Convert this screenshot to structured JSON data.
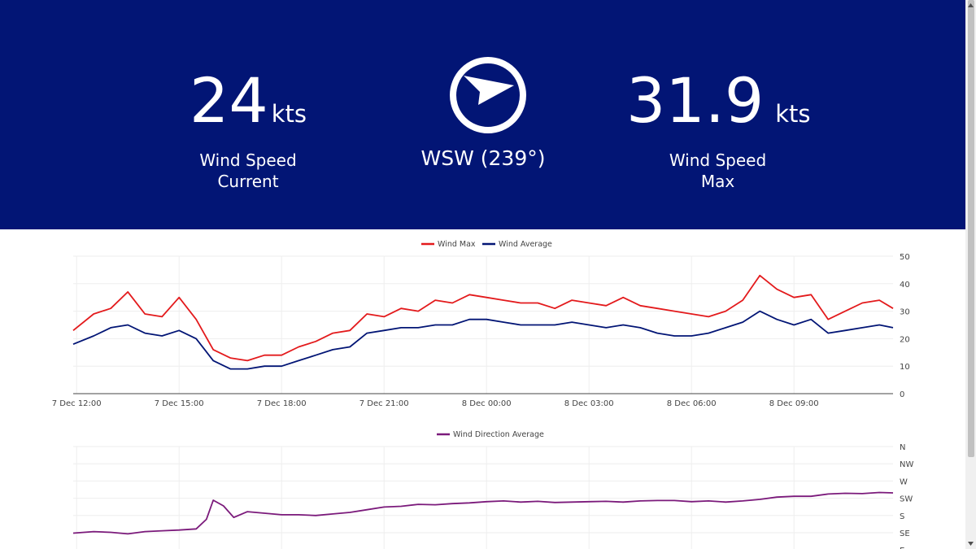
{
  "header": {
    "current": {
      "value": "24",
      "unit": "kts",
      "label_line1": "Wind Speed",
      "label_line2": "Current"
    },
    "direction": {
      "text": "WSW (239°)",
      "icon": "wind-direction-compass-icon",
      "bearing": 239
    },
    "max": {
      "value": "31.9",
      "unit": "kts",
      "label_line1": "Wind Speed",
      "label_line2": "Max"
    },
    "background": "#021575"
  },
  "chart_data": [
    {
      "type": "line",
      "legend_position": "top-center",
      "grid": true,
      "x_ticks": [
        "7 Dec 12:00",
        "7 Dec 15:00",
        "7 Dec 18:00",
        "7 Dec 21:00",
        "8 Dec 00:00",
        "8 Dec 03:00",
        "8 Dec 06:00",
        "8 Dec 09:00"
      ],
      "x_range_hours": [
        11.9,
        35.9
      ],
      "ylim": [
        0,
        50
      ],
      "y_ticks": [
        "0",
        "10",
        "20",
        "30",
        "40",
        "50"
      ],
      "x_hours": [
        11.9,
        12.5,
        13.0,
        13.5,
        14.0,
        14.5,
        15.0,
        15.5,
        16.0,
        16.5,
        17.0,
        17.5,
        18.0,
        18.5,
        19.0,
        19.5,
        20.0,
        20.5,
        21.0,
        21.5,
        22.0,
        22.5,
        23.0,
        23.5,
        24.0,
        24.5,
        25.0,
        25.5,
        26.0,
        26.5,
        27.0,
        27.5,
        28.0,
        28.5,
        29.0,
        29.5,
        30.0,
        30.5,
        31.0,
        31.5,
        32.0,
        32.5,
        33.0,
        33.5,
        34.0,
        34.5,
        35.0,
        35.5,
        35.9
      ],
      "series": [
        {
          "name": "Wind Max",
          "color": "#e31a1c",
          "values": [
            23,
            29,
            31,
            37,
            29,
            28,
            35,
            27,
            16,
            13,
            12,
            14,
            14,
            17,
            19,
            22,
            23,
            29,
            28,
            31,
            30,
            34,
            33,
            36,
            35,
            34,
            33,
            33,
            31,
            34,
            33,
            32,
            35,
            32,
            31,
            30,
            29,
            28,
            30,
            34,
            43,
            38,
            35,
            36,
            27,
            30,
            33,
            34,
            31
          ]
        },
        {
          "name": "Wind Average",
          "color": "#021575",
          "values": [
            18,
            21,
            24,
            25,
            22,
            21,
            23,
            20,
            12,
            9,
            9,
            10,
            10,
            12,
            14,
            16,
            17,
            22,
            23,
            24,
            24,
            25,
            25,
            27,
            27,
            26,
            25,
            25,
            25,
            26,
            25,
            24,
            25,
            24,
            22,
            21,
            21,
            22,
            24,
            26,
            30,
            27,
            25,
            27,
            22,
            23,
            24,
            25,
            24
          ]
        }
      ]
    },
    {
      "type": "line",
      "legend_position": "top-center",
      "grid": true,
      "y_ticks": [
        "N",
        "NW",
        "W",
        "SW",
        "S",
        "SE",
        "E"
      ],
      "y_ticks_degrees": [
        360,
        315,
        270,
        225,
        180,
        135,
        90
      ],
      "x_range_hours": [
        11.9,
        35.9
      ],
      "x_hours": [
        11.9,
        12.5,
        13.0,
        13.5,
        14.0,
        14.5,
        15.0,
        15.5,
        15.8,
        16.0,
        16.3,
        16.6,
        17.0,
        17.5,
        18.0,
        18.5,
        19.0,
        19.5,
        20.0,
        20.5,
        21.0,
        21.5,
        22.0,
        22.5,
        23.0,
        23.5,
        24.0,
        24.5,
        25.0,
        25.5,
        26.0,
        26.5,
        27.0,
        27.5,
        28.0,
        28.5,
        29.0,
        29.5,
        30.0,
        30.5,
        31.0,
        31.5,
        32.0,
        32.5,
        33.0,
        33.5,
        34.0,
        34.5,
        35.0,
        35.5,
        35.9
      ],
      "series": [
        {
          "name": "Wind Direction Average",
          "color": "#7b1a7b",
          "values": [
            134,
            138,
            136,
            132,
            138,
            140,
            142,
            145,
            170,
            220,
            205,
            175,
            190,
            186,
            182,
            182,
            180,
            184,
            188,
            195,
            202,
            204,
            209,
            208,
            211,
            213,
            216,
            218,
            215,
            217,
            214,
            215,
            216,
            217,
            215,
            218,
            219,
            219,
            216,
            218,
            215,
            218,
            222,
            228,
            230,
            230,
            236,
            238,
            237,
            240,
            239
          ]
        }
      ]
    }
  ]
}
